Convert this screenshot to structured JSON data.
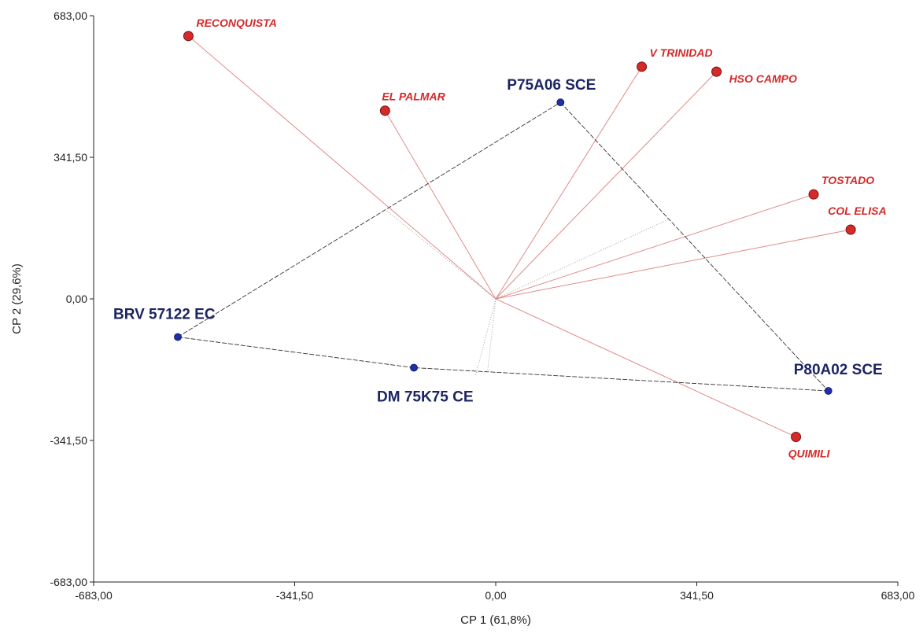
{
  "chart_data": {
    "type": "scatter",
    "subtype": "biplot",
    "xlabel": "CP 1 (61,8%)",
    "ylabel": "CP 2 (29,6%)",
    "xlim": [
      -683,
      683
    ],
    "ylim": [
      -683,
      683
    ],
    "x_ticks": [
      {
        "value": -683,
        "label": "-683,00"
      },
      {
        "value": -341.5,
        "label": "-341,50"
      },
      {
        "value": 0,
        "label": "0,00"
      },
      {
        "value": 341.5,
        "label": "341,50"
      },
      {
        "value": 683,
        "label": "683,00"
      }
    ],
    "y_ticks": [
      {
        "value": -683,
        "label": "-683,00"
      },
      {
        "value": -341.5,
        "label": "-341,50"
      },
      {
        "value": 0,
        "label": "0,00"
      },
      {
        "value": 341.5,
        "label": "341,50"
      },
      {
        "value": 683,
        "label": "683,00"
      }
    ],
    "environments": [
      {
        "name": "RECONQUISTA",
        "x": -522,
        "y": 634
      },
      {
        "name": "V TRINIDAD",
        "x": 248,
        "y": 560
      },
      {
        "name": "HSO CAMPO",
        "x": 375,
        "y": 548
      },
      {
        "name": "EL PALMAR",
        "x": -188,
        "y": 454
      },
      {
        "name": "TOSTADO",
        "x": 540,
        "y": 252
      },
      {
        "name": "COL ELISA",
        "x": 603,
        "y": 167
      },
      {
        "name": "QUIMILI",
        "x": 510,
        "y": -333
      }
    ],
    "genotypes": [
      {
        "name": "P75A06 SCE",
        "x": 110,
        "y": 474
      },
      {
        "name": "BRV 57122 EC",
        "x": -540,
        "y": -92
      },
      {
        "name": "DM 75K75 CE",
        "x": -139,
        "y": -166
      },
      {
        "name": "P80A02 SCE",
        "x": 565,
        "y": -222
      }
    ],
    "polygon_order": [
      "P75A06 SCE",
      "P80A02 SCE",
      "DM 75K75 CE",
      "BRV 57122 EC"
    ],
    "colors": {
      "environment": "#d42a2a",
      "genotype": "#1f2fa8",
      "env_vector": "#e08a8a",
      "polygon": "#333333",
      "axis": "#222222"
    }
  }
}
